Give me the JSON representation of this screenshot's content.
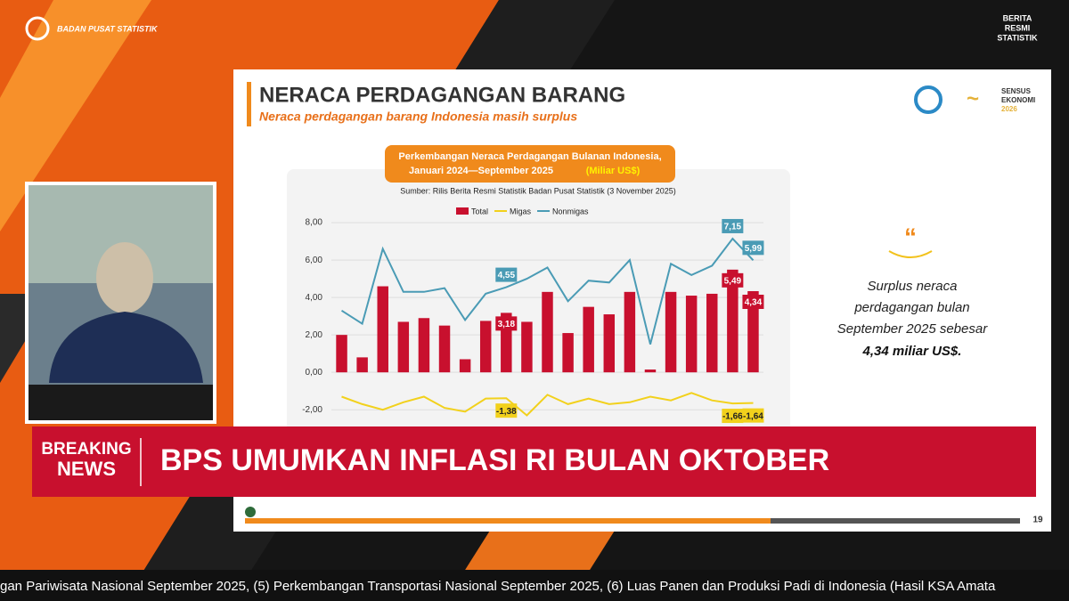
{
  "header": {
    "org": "BADAN PUSAT STATISTIK",
    "brand": [
      "BERITA",
      "RESMI",
      "STATISTIK"
    ]
  },
  "slide": {
    "title": "NERACA PERDAGANGAN BARANG",
    "subtitle": "Neraca perdagangan barang Indonesia masih surplus",
    "logo_text": [
      "SENSUS",
      "EKONOMI",
      "2026"
    ],
    "page": "19",
    "quote": {
      "lines": [
        "Surplus neraca",
        "perdagangan bulan",
        "September 2025 sebesar"
      ],
      "emphasis": "4,34 miliar US$."
    }
  },
  "chart_data": {
    "type": "bar-line",
    "title": "Perkembangan Neraca Perdagangan Bulanan Indonesia,",
    "subtitle": "Januari 2024—September 2025",
    "unit": "(Miliar US$)",
    "source": "Sumber: Rilis Berita Resmi Statistik Badan Pusat Statistik (3 November 2025)",
    "ylim": [
      -2.5,
      8.5
    ],
    "yticks": [
      {
        "value": -2,
        "label": "-2,00"
      },
      {
        "value": 0,
        "label": "0,00"
      },
      {
        "value": 2,
        "label": "2,00"
      },
      {
        "value": 4,
        "label": "4,00"
      },
      {
        "value": 6,
        "label": "6,00"
      },
      {
        "value": 8,
        "label": "8,00"
      }
    ],
    "grid": true,
    "series": [
      {
        "name": "Total",
        "type": "bar",
        "color": "#c8102e",
        "values": [
          2.0,
          0.8,
          4.6,
          2.7,
          2.9,
          2.5,
          0.7,
          2.75,
          3.18,
          2.7,
          4.3,
          2.1,
          3.5,
          3.1,
          4.3,
          0.15,
          4.3,
          4.1,
          4.2,
          5.49,
          4.34
        ],
        "value_labels": [
          null,
          null,
          null,
          null,
          null,
          null,
          null,
          null,
          "3,18",
          null,
          null,
          null,
          null,
          null,
          null,
          null,
          null,
          null,
          null,
          "5,49",
          "4,34"
        ]
      },
      {
        "name": "Migas",
        "type": "line",
        "color": "#f2d11c",
        "values": [
          -1.3,
          -1.7,
          -2.0,
          -1.6,
          -1.3,
          -1.9,
          -2.1,
          -1.4,
          -1.38,
          -2.3,
          -1.2,
          -1.7,
          -1.4,
          -1.7,
          -1.6,
          -1.3,
          -1.5,
          -1.1,
          -1.5,
          -1.66,
          -1.64
        ],
        "value_labels": [
          null,
          null,
          null,
          null,
          null,
          null,
          null,
          null,
          "-1,38",
          null,
          null,
          null,
          null,
          null,
          null,
          null,
          null,
          null,
          null,
          "-1,66",
          "-1,64"
        ]
      },
      {
        "name": "Nonmigas",
        "type": "line",
        "color": "#4a9bb5",
        "values": [
          3.3,
          2.6,
          6.6,
          4.3,
          4.3,
          4.5,
          2.8,
          4.2,
          4.55,
          5.0,
          5.6,
          3.8,
          4.9,
          4.8,
          6.0,
          1.5,
          5.8,
          5.2,
          5.7,
          7.15,
          5.99
        ],
        "value_labels": [
          null,
          null,
          null,
          null,
          null,
          null,
          null,
          null,
          "4,55",
          null,
          null,
          null,
          null,
          null,
          null,
          null,
          null,
          null,
          null,
          "7,15",
          "5,99"
        ]
      }
    ]
  },
  "banner": {
    "tag": [
      "BREAKING",
      "NEWS"
    ],
    "headline": "BPS UMUMKAN INFLASI RI BULAN OKTOBER"
  },
  "ticker": "gan Pariwisata Nasional September 2025, (5) Perkembangan Transportasi Nasional September 2025, (6) Luas Panen dan Produksi Padi di Indonesia (Hasil KSA Amata"
}
